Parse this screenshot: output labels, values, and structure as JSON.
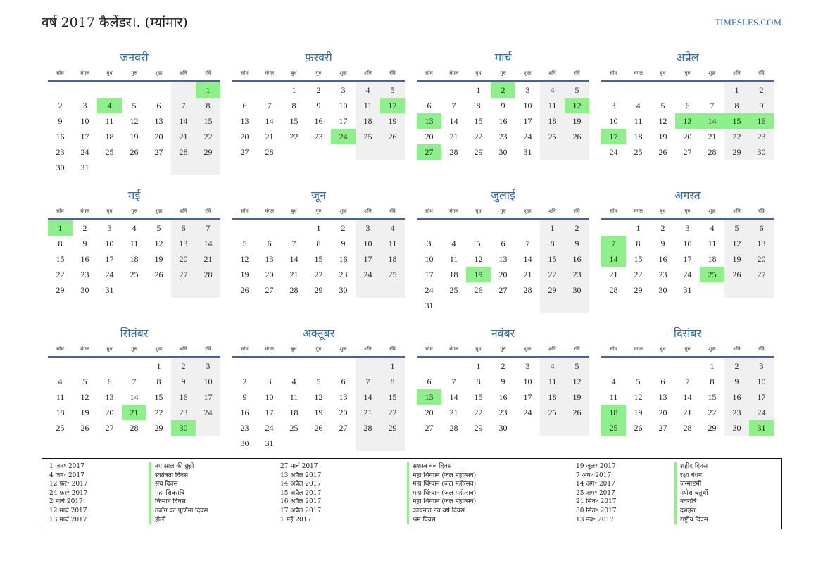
{
  "header": {
    "title": "वर्ष 2017 कैलेंडर।. (म्यांमार)",
    "site": "TIMESLES.COM"
  },
  "weekdays": [
    "सोम",
    "मंगल",
    "बुध",
    "गुरु",
    "शुक्र",
    "शनि",
    "रवि"
  ],
  "months": [
    {
      "name": "जनवरी",
      "offset": 6,
      "days": 31,
      "holidays": [
        1,
        4
      ]
    },
    {
      "name": "फ़रवरी",
      "offset": 2,
      "days": 28,
      "holidays": [
        12,
        24
      ]
    },
    {
      "name": "मार्च",
      "offset": 2,
      "days": 31,
      "holidays": [
        2,
        12,
        13,
        27
      ]
    },
    {
      "name": "अप्रैल",
      "offset": 5,
      "days": 30,
      "holidays": [
        13,
        14,
        15,
        16,
        17
      ]
    },
    {
      "name": "मई",
      "offset": 0,
      "days": 31,
      "holidays": [
        1
      ]
    },
    {
      "name": "जून",
      "offset": 3,
      "days": 30,
      "holidays": []
    },
    {
      "name": "जुलाई",
      "offset": 5,
      "days": 31,
      "holidays": [
        19
      ]
    },
    {
      "name": "अगस्त",
      "offset": 1,
      "days": 31,
      "holidays": [
        7,
        14,
        25
      ]
    },
    {
      "name": "सितंबर",
      "offset": 4,
      "days": 30,
      "holidays": [
        21,
        30
      ]
    },
    {
      "name": "अक्तूबर",
      "offset": 6,
      "days": 31,
      "holidays": []
    },
    {
      "name": "नवंबर",
      "offset": 2,
      "days": 30,
      "holidays": [
        13
      ]
    },
    {
      "name": "दिसंबर",
      "offset": 4,
      "days": 31,
      "holidays": [
        18,
        25,
        31
      ]
    }
  ],
  "holiday_list": [
    [
      {
        "date": "1 जन॰ 2017",
        "name": "नए साल की छुट्टी"
      },
      {
        "date": "4 जन॰ 2017",
        "name": "स्वतंत्रता दिवस"
      },
      {
        "date": "12 फ़र॰ 2017",
        "name": "संघ दिवस"
      },
      {
        "date": "24 फ़र॰ 2017",
        "name": "महा शिवरात्रि"
      },
      {
        "date": "2 मार्च 2017",
        "name": "किसान दिवस"
      },
      {
        "date": "12 मार्च 2017",
        "name": "तबाँग का पूर्णिमा दिवस"
      },
      {
        "date": "13 मार्च 2017",
        "name": "होली"
      }
    ],
    [
      {
        "date": "27 मार्च 2017",
        "name": "सशस्त्र बल दिवस"
      },
      {
        "date": "13 अप्रैल 2017",
        "name": "महा थिंग्यान (जल महोत्सव)"
      },
      {
        "date": "14 अप्रैल 2017",
        "name": "महा थिंग्यान (जल महोत्सव)"
      },
      {
        "date": "15 अप्रैल 2017",
        "name": "महा थिंग्यान (जल महोत्सव)"
      },
      {
        "date": "16 अप्रैल 2017",
        "name": "महा थिंग्यान (जल महोत्सव)"
      },
      {
        "date": "17 अप्रैल 2017",
        "name": "कायनात नव वर्ष दिवस"
      },
      {
        "date": "1 मई 2017",
        "name": "श्रम दिवस"
      }
    ],
    [
      {
        "date": "19 जुल॰ 2017",
        "name": "शहीद दिवस"
      },
      {
        "date": "7 अग॰ 2017",
        "name": "रक्षा बंधन"
      },
      {
        "date": "14 अग॰ 2017",
        "name": "जन्माष्टमी"
      },
      {
        "date": "25 अग॰ 2017",
        "name": "गणेश चतुर्थी"
      },
      {
        "date": "21 सित॰ 2017",
        "name": "नवरात्रि"
      },
      {
        "date": "30 सित॰ 2017",
        "name": "दशहरा"
      },
      {
        "date": "13 नव॰ 2017",
        "name": "राष्ट्रीय दिवस"
      }
    ]
  ],
  "colors": {
    "accent": "#2a6db0",
    "holiday": "#8ef08a",
    "weekend": "#f0f0f0",
    "rule": "#45648f"
  }
}
